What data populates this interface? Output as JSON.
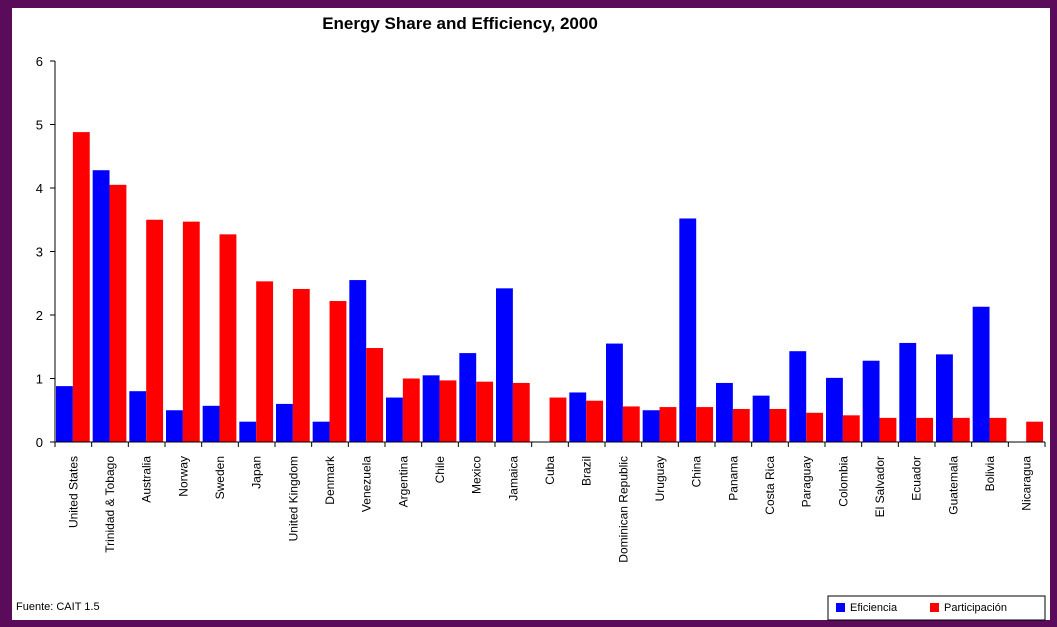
{
  "chart_data": {
    "type": "bar",
    "title": "Energy Share and Efficiency, 2000",
    "categories": [
      "United States",
      "Trinidad & Tobago",
      "Australia",
      "Norway",
      "Sweden",
      "Japan",
      "United Kingdom",
      "Denmark",
      "Venezuela",
      "Argentina",
      "Chile",
      "Mexico",
      "Jamaica",
      "Cuba",
      "Brazil",
      "Dominican Republic",
      "Uruguay",
      "China",
      "Panama",
      "Costa Rica",
      "Paraguay",
      "Colombia",
      "El Salvador",
      "Ecuador",
      "Guatemala",
      "Bolivia",
      "Nicaragua"
    ],
    "series": [
      {
        "name": "Eficiencia",
        "color": "#0000ff",
        "values": [
          0.88,
          4.28,
          0.8,
          0.5,
          0.57,
          0.32,
          0.6,
          0.32,
          2.55,
          0.7,
          1.05,
          1.4,
          2.42,
          null,
          0.78,
          1.55,
          0.5,
          3.52,
          0.93,
          0.73,
          1.43,
          1.01,
          1.28,
          1.56,
          1.38,
          2.13,
          null
        ]
      },
      {
        "name": "Participación",
        "color": "#ff0000",
        "values": [
          4.88,
          4.05,
          3.5,
          3.47,
          3.27,
          2.53,
          2.41,
          2.22,
          1.48,
          1.0,
          0.97,
          0.95,
          0.93,
          0.7,
          0.65,
          0.56,
          0.55,
          0.55,
          0.52,
          0.52,
          0.46,
          0.42,
          0.38,
          0.38,
          0.38,
          0.38,
          0.32
        ]
      }
    ],
    "ylim": [
      0,
      6
    ],
    "yticks": [
      0,
      1,
      2,
      3,
      4,
      5,
      6
    ],
    "source": "Fuente: CAIT 1.5"
  }
}
